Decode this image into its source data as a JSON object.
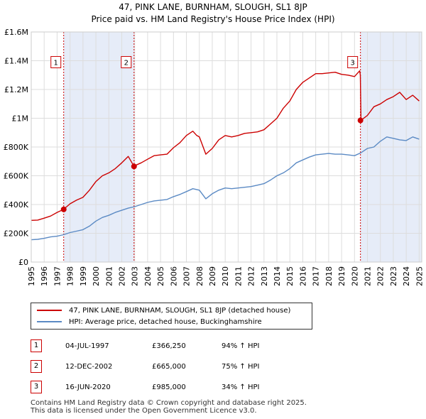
{
  "header": {
    "title": "47, PINK LANE, BURNHAM, SLOUGH, SL1 8JP",
    "subtitle": "Price paid vs. HM Land Registry's House Price Index (HPI)"
  },
  "colors": {
    "property": "#cc0000",
    "hpi": "#5b8ac4",
    "shade": "#dde6f5",
    "marker_line": "#cc0000"
  },
  "chart_data": {
    "type": "line",
    "title": "Price paid vs. HM Land Registry's House Price Index (HPI)",
    "xlabel": "",
    "ylabel": "",
    "xlim": [
      1995,
      2025.2
    ],
    "ylim": [
      0,
      1600000
    ],
    "x_ticks": [
      "1995",
      "1996",
      "1997",
      "1998",
      "1999",
      "2000",
      "2001",
      "2002",
      "2003",
      "2004",
      "2005",
      "2006",
      "2007",
      "2008",
      "2009",
      "2010",
      "2011",
      "2012",
      "2013",
      "2014",
      "2015",
      "2016",
      "2017",
      "2018",
      "2019",
      "2020",
      "2021",
      "2022",
      "2023",
      "2024",
      "2025"
    ],
    "y_ticks": [
      {
        "value": 0,
        "label": "£0"
      },
      {
        "value": 200000,
        "label": "£200K"
      },
      {
        "value": 400000,
        "label": "£400K"
      },
      {
        "value": 600000,
        "label": "£600K"
      },
      {
        "value": 800000,
        "label": "£800K"
      },
      {
        "value": 1000000,
        "label": "£1M"
      },
      {
        "value": 1200000,
        "label": "£1.2M"
      },
      {
        "value": 1400000,
        "label": "£1.4M"
      },
      {
        "value": 1600000,
        "label": "£1.6M"
      }
    ],
    "grid": true,
    "legend_position": "below",
    "series": [
      {
        "name": "47, PINK LANE, BURNHAM, SLOUGH, SL1 8JP (detached house)",
        "color": "#cc0000",
        "x": [
          1995.0,
          1995.5,
          1996.0,
          1996.5,
          1997.0,
          1997.5,
          1998.0,
          1998.5,
          1999.0,
          1999.5,
          2000.0,
          2000.5,
          2001.0,
          2001.5,
          2002.0,
          2002.5,
          2002.95,
          2003.0,
          2003.5,
          2004.0,
          2004.5,
          2005.0,
          2005.5,
          2006.0,
          2006.5,
          2007.0,
          2007.5,
          2007.8,
          2008.0,
          2008.5,
          2009.0,
          2009.5,
          2010.0,
          2010.5,
          2011.0,
          2011.5,
          2012.0,
          2012.5,
          2013.0,
          2013.5,
          2014.0,
          2014.5,
          2015.0,
          2015.5,
          2016.0,
          2016.5,
          2017.0,
          2017.5,
          2018.0,
          2018.5,
          2019.0,
          2019.5,
          2020.0,
          2020.4,
          2020.45,
          2020.5,
          2021.0,
          2021.5,
          2022.0,
          2022.5,
          2023.0,
          2023.5,
          2024.0,
          2024.5,
          2025.0
        ],
        "values": [
          290000,
          292000,
          305000,
          320000,
          345000,
          366000,
          405000,
          430000,
          450000,
          500000,
          560000,
          600000,
          620000,
          650000,
          690000,
          735000,
          665000,
          670000,
          690000,
          715000,
          740000,
          745000,
          750000,
          795000,
          830000,
          880000,
          910000,
          880000,
          870000,
          750000,
          790000,
          850000,
          880000,
          870000,
          880000,
          895000,
          900000,
          905000,
          920000,
          960000,
          1000000,
          1070000,
          1120000,
          1200000,
          1250000,
          1280000,
          1310000,
          1310000,
          1315000,
          1320000,
          1305000,
          1300000,
          1290000,
          1330000,
          1300000,
          985000,
          1020000,
          1080000,
          1100000,
          1130000,
          1150000,
          1180000,
          1130000,
          1160000,
          1120000
        ]
      },
      {
        "name": "HPI: Average price, detached house, Buckinghamshire",
        "color": "#5b8ac4",
        "x": [
          1995.0,
          1995.5,
          1996.0,
          1996.5,
          1997.0,
          1997.5,
          1998.0,
          1998.5,
          1999.0,
          1999.5,
          2000.0,
          2000.5,
          2001.0,
          2001.5,
          2002.0,
          2002.5,
          2003.0,
          2003.5,
          2004.0,
          2004.5,
          2005.0,
          2005.5,
          2006.0,
          2006.5,
          2007.0,
          2007.5,
          2008.0,
          2008.5,
          2009.0,
          2009.5,
          2010.0,
          2010.5,
          2011.0,
          2011.5,
          2012.0,
          2012.5,
          2013.0,
          2013.5,
          2014.0,
          2014.5,
          2015.0,
          2015.5,
          2016.0,
          2016.5,
          2017.0,
          2017.5,
          2018.0,
          2018.5,
          2019.0,
          2019.5,
          2020.0,
          2020.5,
          2021.0,
          2021.5,
          2022.0,
          2022.5,
          2023.0,
          2023.5,
          2024.0,
          2024.5,
          2025.0
        ],
        "values": [
          155000,
          158000,
          165000,
          175000,
          180000,
          190000,
          205000,
          215000,
          225000,
          250000,
          285000,
          310000,
          325000,
          345000,
          360000,
          375000,
          385000,
          400000,
          415000,
          425000,
          430000,
          435000,
          455000,
          470000,
          490000,
          510000,
          500000,
          440000,
          475000,
          500000,
          515000,
          510000,
          515000,
          520000,
          525000,
          535000,
          545000,
          570000,
          600000,
          620000,
          650000,
          690000,
          710000,
          730000,
          745000,
          750000,
          755000,
          750000,
          750000,
          745000,
          740000,
          760000,
          790000,
          800000,
          840000,
          870000,
          860000,
          850000,
          845000,
          870000,
          855000
        ]
      }
    ],
    "transactions": [
      {
        "id": "1",
        "x": 1997.51,
        "value": 366250,
        "date": "04-JUL-1997",
        "price": "£366,250",
        "hpi": "94% ↑ HPI"
      },
      {
        "id": "2",
        "x": 2002.95,
        "value": 665000,
        "date": "12-DEC-2002",
        "price": "£665,000",
        "hpi": "75% ↑ HPI"
      },
      {
        "id": "3",
        "x": 2020.46,
        "value": 985000,
        "date": "16-JUN-2020",
        "price": "£985,000",
        "hpi": "34% ↑ HPI"
      }
    ],
    "marker_label_value": 1390000,
    "shaded_regions": [
      [
        1997.51,
        2002.95
      ],
      [
        2020.46,
        2025.2
      ]
    ]
  },
  "legend": {
    "property_label": "47, PINK LANE, BURNHAM, SLOUGH, SL1 8JP (detached house)",
    "hpi_label": "HPI: Average price, detached house, Buckinghamshire"
  },
  "footer": {
    "line1": "Contains HM Land Registry data © Crown copyright and database right 2025.",
    "line2": "This data is licensed under the Open Government Licence v3.0."
  }
}
